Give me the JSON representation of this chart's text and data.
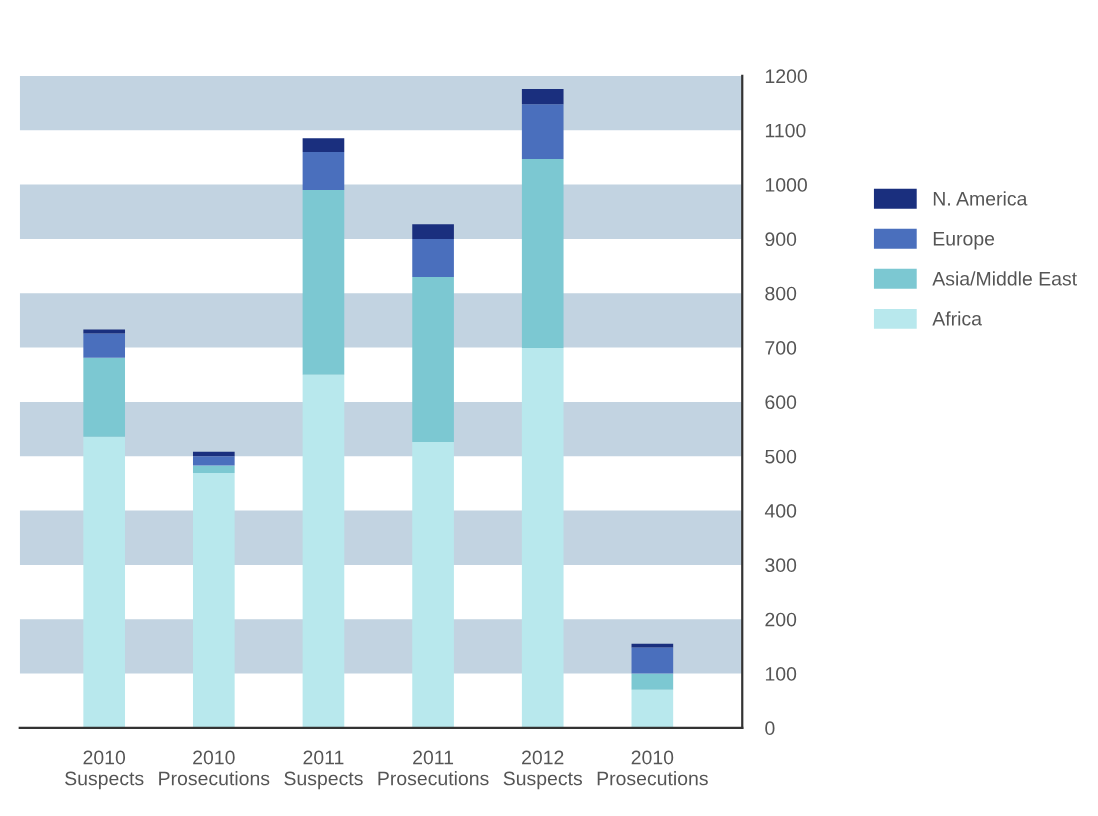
{
  "chart_data": {
    "type": "bar",
    "stacked": true,
    "categories": [
      "2010\nSuspects",
      "2010\nProsecutions",
      "2011\nSuspects",
      "2011\nProsecutions",
      "2012\nSuspects",
      "2010\nProsecutions"
    ],
    "series": [
      {
        "name": "Africa",
        "color": "#b8e8ed",
        "values": [
          536,
          469,
          650,
          526,
          699,
          70
        ]
      },
      {
        "name": "Asia/Middle East",
        "color": "#7cc8d2",
        "values": [
          145,
          14,
          340,
          304,
          348,
          30
        ]
      },
      {
        "name": "Europe",
        "color": "#4a6fbd",
        "values": [
          45,
          17,
          70,
          70,
          101,
          48
        ]
      },
      {
        "name": "N. America",
        "color": "#1a2f7e",
        "values": [
          7,
          8,
          25,
          27,
          28,
          7
        ]
      }
    ],
    "ylim": [
      0,
      1200
    ],
    "yticks": [
      0,
      100,
      200,
      300,
      400,
      500,
      600,
      700,
      800,
      900,
      1000,
      1100,
      1200
    ],
    "bands": [
      {
        "axis": "y",
        "from": 100,
        "to": 200,
        "color": "#c2d3e1"
      },
      {
        "axis": "y",
        "from": 300,
        "to": 400,
        "color": "#c2d3e1"
      },
      {
        "axis": "y",
        "from": 500,
        "to": 600,
        "color": "#c2d3e1"
      },
      {
        "axis": "y",
        "from": 700,
        "to": 800,
        "color": "#c2d3e1"
      },
      {
        "axis": "y",
        "from": 900,
        "to": 1000,
        "color": "#c2d3e1"
      },
      {
        "axis": "y",
        "from": 1100,
        "to": 1200,
        "color": "#c2d3e1"
      }
    ],
    "grid": false,
    "legend": "right"
  }
}
